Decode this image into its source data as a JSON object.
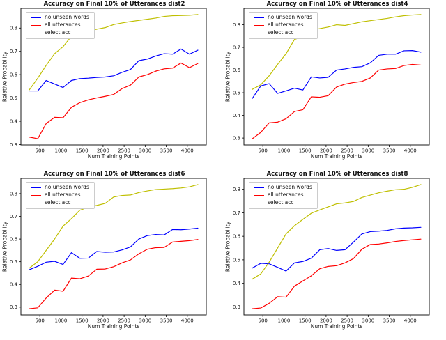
{
  "figure": {
    "background": "#ffffff",
    "text_color": "#111111",
    "frame_color": "#000000"
  },
  "chart_data": [
    {
      "type": "line",
      "title": "Accuracy on Final 10% of Utterances dist2",
      "xlabel": "Num Training Points",
      "ylabel": "Relative Probability",
      "legend_position": "upper left",
      "grid": false,
      "xticks": [
        500,
        1000,
        1500,
        2000,
        2500,
        3000,
        3500,
        4000
      ],
      "yticks": [
        0.3,
        0.4,
        0.5,
        0.6,
        0.7,
        0.8
      ],
      "x": [
        250,
        450,
        650,
        850,
        1050,
        1250,
        1450,
        1650,
        1850,
        2050,
        2250,
        2450,
        2650,
        2850,
        3050,
        3250,
        3450,
        3650,
        3850,
        4050,
        4250
      ],
      "series": [
        {
          "name": "no unseen words",
          "color": "#0000ff",
          "values": [
            0.53,
            0.53,
            0.575,
            0.56,
            0.545,
            0.575,
            0.583,
            0.585,
            0.588,
            0.59,
            0.595,
            0.61,
            0.622,
            0.66,
            0.667,
            0.68,
            0.69,
            0.688,
            0.71,
            0.688,
            0.705
          ]
        },
        {
          "name": "all utterances",
          "color": "#ff0000",
          "values": [
            0.332,
            0.325,
            0.39,
            0.417,
            0.415,
            0.46,
            0.48,
            0.492,
            0.5,
            0.507,
            0.515,
            0.54,
            0.555,
            0.59,
            0.6,
            0.615,
            0.625,
            0.628,
            0.65,
            0.63,
            0.648
          ]
        },
        {
          "name": "select acc",
          "color": "#bfbf00",
          "values": [
            0.535,
            0.585,
            0.64,
            0.69,
            0.72,
            0.765,
            0.777,
            0.79,
            0.795,
            0.802,
            0.815,
            0.822,
            0.828,
            0.833,
            0.838,
            0.843,
            0.85,
            0.853,
            0.854,
            0.855,
            0.858
          ]
        }
      ]
    },
    {
      "type": "line",
      "title": "Accuracy on Final 10% of Utterances dist4",
      "xlabel": "Num Training Points",
      "ylabel": "Relative Probability",
      "legend_position": "upper left",
      "grid": false,
      "xticks": [
        500,
        1000,
        1500,
        2000,
        2500,
        3000,
        3500,
        4000
      ],
      "yticks": [
        0.3,
        0.4,
        0.5,
        0.6,
        0.7,
        0.8
      ],
      "x": [
        250,
        450,
        650,
        850,
        1050,
        1250,
        1450,
        1650,
        1850,
        2050,
        2250,
        2450,
        2650,
        2850,
        3050,
        3250,
        3450,
        3650,
        3850,
        4050,
        4250
      ],
      "series": [
        {
          "name": "no unseen words",
          "color": "#0000ff",
          "values": [
            0.475,
            0.53,
            0.54,
            0.497,
            0.508,
            0.52,
            0.512,
            0.57,
            0.565,
            0.568,
            0.6,
            0.605,
            0.612,
            0.615,
            0.632,
            0.665,
            0.67,
            0.67,
            0.685,
            0.686,
            0.679
          ]
        },
        {
          "name": "all utterances",
          "color": "#ff0000",
          "values": [
            0.297,
            0.325,
            0.367,
            0.37,
            0.385,
            0.417,
            0.425,
            0.482,
            0.48,
            0.487,
            0.525,
            0.538,
            0.545,
            0.55,
            0.565,
            0.6,
            0.605,
            0.607,
            0.62,
            0.625,
            0.622
          ]
        },
        {
          "name": "select acc",
          "color": "#bfbf00",
          "values": [
            0.515,
            0.535,
            0.575,
            0.625,
            0.672,
            0.735,
            0.748,
            0.775,
            0.783,
            0.79,
            0.8,
            0.797,
            0.805,
            0.813,
            0.818,
            0.823,
            0.828,
            0.835,
            0.84,
            0.843,
            0.845
          ]
        }
      ]
    },
    {
      "type": "line",
      "title": "Accuracy on Final 10% of Utterances dist6",
      "xlabel": "Num Training Points",
      "ylabel": "Relative Probability",
      "legend_position": "upper left",
      "grid": false,
      "xticks": [
        500,
        1000,
        1500,
        2000,
        2500,
        3000,
        3500,
        4000
      ],
      "yticks": [
        0.3,
        0.4,
        0.5,
        0.6,
        0.7,
        0.8
      ],
      "x": [
        250,
        450,
        650,
        850,
        1050,
        1250,
        1450,
        1650,
        1850,
        2050,
        2250,
        2450,
        2650,
        2850,
        3050,
        3250,
        3450,
        3650,
        3850,
        4050,
        4250
      ],
      "series": [
        {
          "name": "no unseen words",
          "color": "#0000ff",
          "values": [
            0.465,
            0.48,
            0.498,
            0.502,
            0.488,
            0.54,
            0.515,
            0.516,
            0.545,
            0.542,
            0.543,
            0.552,
            0.565,
            0.6,
            0.615,
            0.62,
            0.618,
            0.642,
            0.641,
            0.644,
            0.648
          ]
        },
        {
          "name": "all utterances",
          "color": "#ff0000",
          "values": [
            0.293,
            0.297,
            0.34,
            0.375,
            0.37,
            0.428,
            0.425,
            0.437,
            0.467,
            0.468,
            0.478,
            0.495,
            0.508,
            0.535,
            0.555,
            0.562,
            0.563,
            0.587,
            0.59,
            0.593,
            0.598
          ]
        },
        {
          "name": "select acc",
          "color": "#bfbf00",
          "values": [
            0.472,
            0.5,
            0.55,
            0.6,
            0.657,
            0.69,
            0.727,
            0.74,
            0.748,
            0.757,
            0.785,
            0.792,
            0.794,
            0.805,
            0.812,
            0.818,
            0.82,
            0.822,
            0.825,
            0.83,
            0.84
          ]
        }
      ]
    },
    {
      "type": "line",
      "title": "Accuracy on Final 10% of Utterances dist8",
      "xlabel": "Num Training Points",
      "ylabel": "Relative Probability",
      "legend_position": "upper left",
      "grid": false,
      "xticks": [
        500,
        1000,
        1500,
        2000,
        2500,
        3000,
        3500,
        4000
      ],
      "yticks": [
        0.3,
        0.4,
        0.5,
        0.6,
        0.7,
        0.8
      ],
      "x": [
        250,
        450,
        650,
        850,
        1050,
        1250,
        1450,
        1650,
        1850,
        2050,
        2250,
        2450,
        2650,
        2850,
        3050,
        3250,
        3450,
        3650,
        3850,
        4050,
        4250
      ],
      "series": [
        {
          "name": "no unseen words",
          "color": "#0000ff",
          "values": [
            0.465,
            0.485,
            0.483,
            0.468,
            0.452,
            0.487,
            0.493,
            0.507,
            0.543,
            0.548,
            0.54,
            0.543,
            0.575,
            0.61,
            0.62,
            0.622,
            0.625,
            0.632,
            0.635,
            0.636,
            0.638
          ]
        },
        {
          "name": "all utterances",
          "color": "#ff0000",
          "values": [
            0.292,
            0.295,
            0.315,
            0.343,
            0.341,
            0.388,
            0.41,
            0.432,
            0.462,
            0.472,
            0.475,
            0.487,
            0.505,
            0.545,
            0.565,
            0.567,
            0.572,
            0.578,
            0.582,
            0.585,
            0.588
          ]
        },
        {
          "name": "select acc",
          "color": "#bfbf00",
          "values": [
            0.418,
            0.44,
            0.49,
            0.55,
            0.61,
            0.645,
            0.672,
            0.698,
            0.712,
            0.725,
            0.738,
            0.742,
            0.748,
            0.765,
            0.775,
            0.785,
            0.792,
            0.798,
            0.8,
            0.808,
            0.82
          ]
        }
      ]
    }
  ]
}
